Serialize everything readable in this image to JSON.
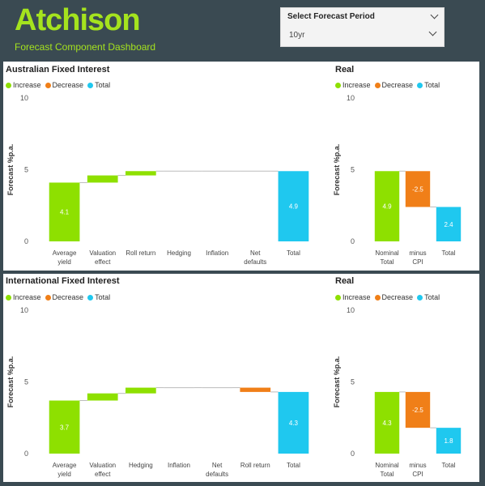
{
  "header": {
    "logo": "Atchison",
    "subtitle": "Forecast Component Dashboard"
  },
  "slicer": {
    "title": "Select Forecast Period",
    "value": "10yr"
  },
  "legend": {
    "increase": "Increase",
    "decrease": "Decrease",
    "total": "Total"
  },
  "colors": {
    "increase": "#8ee000",
    "decrease": "#f07f18",
    "total": "#1fc8ef",
    "accent": "#a5e31e",
    "background": "#3a4a52"
  },
  "panels": {
    "aus": {
      "title": "Australian Fixed Interest",
      "real_title": "Real"
    },
    "intl": {
      "title": "International Fixed Interest",
      "real_title": "Real"
    }
  },
  "chart_data": [
    {
      "type": "bar",
      "title": "Australian Fixed Interest",
      "ylabel": "Forecast %p.a.",
      "ylim": [
        0,
        10
      ],
      "yticks": [
        0,
        5,
        10
      ],
      "categories": [
        "Average yield",
        "Valuation effect",
        "Roll return",
        "Hedging",
        "Inflation",
        "Net defaults",
        "Total"
      ],
      "kinds": [
        "increase",
        "increase",
        "increase",
        "increase",
        "increase",
        "increase",
        "total"
      ],
      "values": [
        4.1,
        0.5,
        0.3,
        0.0,
        0.0,
        0.0,
        4.9
      ],
      "data_labels": [
        "4.1",
        "",
        "",
        "",
        "",
        "",
        "4.9"
      ]
    },
    {
      "type": "bar",
      "title": "Real",
      "ylabel": "Forecast %p.a.",
      "ylim": [
        0,
        10
      ],
      "yticks": [
        0,
        5,
        10
      ],
      "categories": [
        "Nominal Total",
        "minus CPI",
        "Total"
      ],
      "kinds": [
        "increase",
        "decrease",
        "total"
      ],
      "values": [
        4.9,
        -2.5,
        2.4
      ],
      "data_labels": [
        "4.9",
        "-2.5",
        "2.4"
      ]
    },
    {
      "type": "bar",
      "title": "International Fixed Interest",
      "ylabel": "Forecast %p.a.",
      "ylim": [
        0,
        10
      ],
      "yticks": [
        0,
        5,
        10
      ],
      "categories": [
        "Average yield",
        "Valuation effect",
        "Hedging",
        "Inflation",
        "Net defaults",
        "Roll return",
        "Total"
      ],
      "kinds": [
        "increase",
        "increase",
        "increase",
        "increase",
        "increase",
        "decrease",
        "total"
      ],
      "values": [
        3.7,
        0.5,
        0.4,
        0.0,
        0.0,
        -0.3,
        4.3
      ],
      "data_labels": [
        "3.7",
        "",
        "",
        "",
        "",
        "",
        "4.3"
      ]
    },
    {
      "type": "bar",
      "title": "Real",
      "ylabel": "Forecast %p.a.",
      "ylim": [
        0,
        10
      ],
      "yticks": [
        0,
        5,
        10
      ],
      "categories": [
        "Nominal Total",
        "minus CPI",
        "Total"
      ],
      "kinds": [
        "increase",
        "decrease",
        "total"
      ],
      "values": [
        4.3,
        -2.5,
        1.8
      ],
      "data_labels": [
        "4.3",
        "-2.5",
        "1.8"
      ]
    }
  ]
}
